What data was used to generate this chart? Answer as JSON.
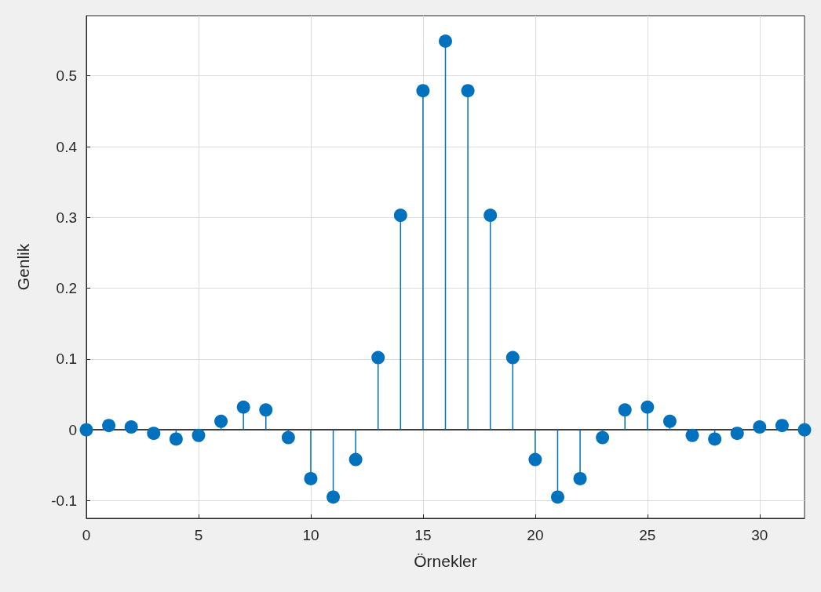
{
  "chart_data": {
    "type": "lollipop",
    "xlabel": "Örnekler",
    "ylabel": "Genlik",
    "x": [
      0,
      1,
      2,
      3,
      4,
      5,
      6,
      7,
      8,
      9,
      10,
      11,
      12,
      13,
      14,
      15,
      16,
      17,
      18,
      19,
      20,
      21,
      22,
      23,
      24,
      25,
      26,
      27,
      28,
      29,
      30,
      31,
      32
    ],
    "values": [
      0,
      0.006,
      0.004,
      -0.005,
      -0.013,
      -0.008,
      0.012,
      0.032,
      0.028,
      -0.011,
      -0.069,
      -0.095,
      -0.042,
      0.102,
      0.303,
      0.479,
      0.549,
      0.479,
      0.303,
      0.102,
      -0.042,
      -0.095,
      -0.069,
      -0.011,
      0.028,
      0.032,
      0.012,
      -0.008,
      -0.013,
      -0.005,
      0.004,
      0.006,
      0
    ],
    "color": "#0072bd",
    "xlim": [
      0,
      32
    ],
    "xticks": [
      0,
      5,
      10,
      15,
      20,
      25,
      30
    ],
    "ylim": [
      -0.125,
      0.585
    ],
    "yticks": [
      -0.1,
      0,
      0.1,
      0.2,
      0.3,
      0.4,
      0.5
    ],
    "ref_lines": [
      {
        "axis": "y",
        "value": 0,
        "color": "#000000"
      }
    ],
    "grid": true,
    "marker": "circle"
  }
}
